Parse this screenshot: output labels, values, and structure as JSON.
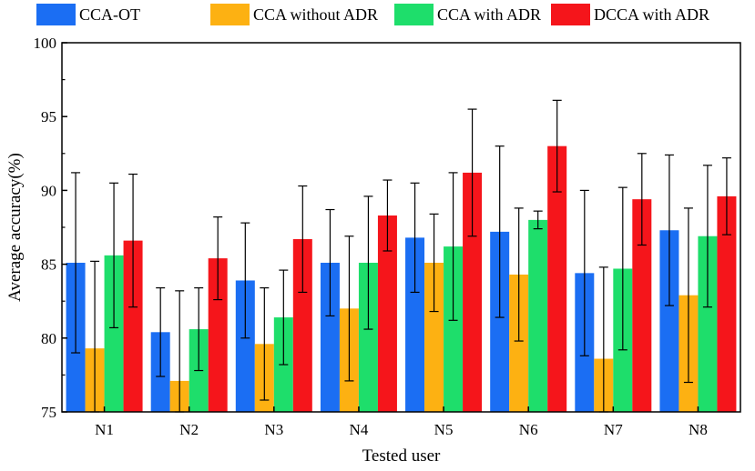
{
  "chart_data": {
    "type": "bar",
    "title": "",
    "xlabel": "Tested user",
    "ylabel": "Average accuracy(%)",
    "ylim": [
      75,
      100
    ],
    "yticks": [
      75,
      80,
      85,
      90,
      95,
      100
    ],
    "grid": false,
    "legend_position": "top",
    "categories": [
      "N1",
      "N2",
      "N3",
      "N4",
      "N5",
      "N6",
      "N7",
      "N8"
    ],
    "series": [
      {
        "name": "CCA-OT",
        "color": "#1b6ef3",
        "values": [
          85.1,
          80.4,
          83.9,
          85.1,
          86.8,
          87.2,
          84.4,
          87.3
        ],
        "errors": [
          6.1,
          3.0,
          3.9,
          3.6,
          3.7,
          5.8,
          5.6,
          5.1
        ]
      },
      {
        "name": "CCA without ADR",
        "color": "#fdb112",
        "values": [
          79.3,
          77.1,
          79.6,
          82.0,
          85.1,
          84.3,
          78.6,
          82.9
        ],
        "errors": [
          5.9,
          6.1,
          3.8,
          4.9,
          3.3,
          4.5,
          6.2,
          5.9
        ]
      },
      {
        "name": "CCA with ADR",
        "color": "#1ede6b",
        "values": [
          85.6,
          80.6,
          81.4,
          85.1,
          86.2,
          88.0,
          84.7,
          86.9
        ],
        "errors": [
          4.9,
          2.8,
          3.2,
          4.5,
          5.0,
          0.6,
          5.5,
          4.8
        ]
      },
      {
        "name": "DCCA with ADR",
        "color": "#f5151b",
        "values": [
          86.6,
          85.4,
          86.7,
          88.3,
          91.2,
          93.0,
          89.4,
          89.6
        ],
        "errors": [
          4.5,
          2.8,
          3.6,
          2.4,
          4.3,
          3.1,
          3.1,
          2.6
        ]
      }
    ]
  }
}
